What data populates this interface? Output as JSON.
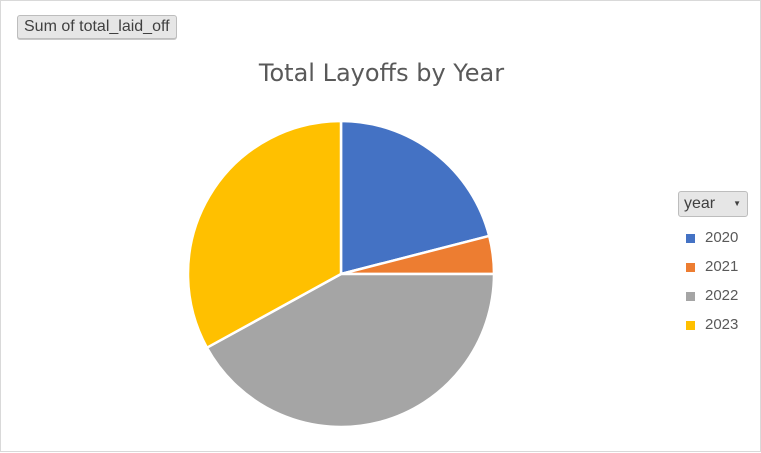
{
  "pivot": {
    "field_button": "Sum of total_laid_off"
  },
  "legend": {
    "filter_label": "year",
    "items": [
      {
        "label": "2020",
        "color": "#4472C4"
      },
      {
        "label": "2021",
        "color": "#ED7D31"
      },
      {
        "label": "2022",
        "color": "#A5A5A5"
      },
      {
        "label": "2023",
        "color": "#FFC000"
      }
    ]
  },
  "chart_data": {
    "type": "pie",
    "title": "Total Layoffs by Year",
    "categories": [
      "2020",
      "2021",
      "2022",
      "2023"
    ],
    "values": [
      21,
      4,
      42,
      33
    ],
    "colors": [
      "#4472C4",
      "#ED7D31",
      "#A5A5A5",
      "#FFC000"
    ],
    "legend": "right"
  }
}
